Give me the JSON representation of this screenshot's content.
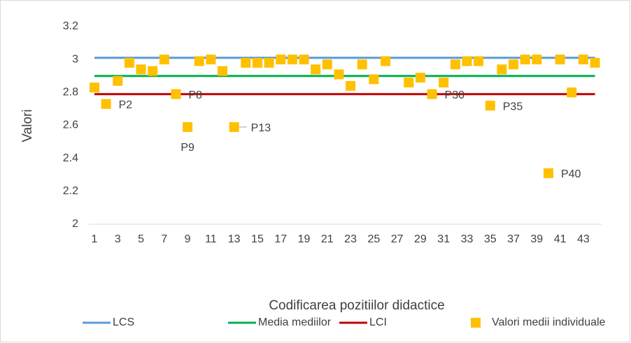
{
  "chart_data": {
    "type": "line",
    "x_label": "Codificarea pozitiilor didactice",
    "y_label": "Valori",
    "categories": [
      1,
      null,
      3,
      null,
      5,
      null,
      7,
      null,
      9,
      null,
      11,
      null,
      13,
      null,
      15,
      null,
      17,
      null,
      19,
      null,
      21,
      null,
      23,
      null,
      25,
      null,
      27,
      null,
      29,
      null,
      31,
      null,
      33,
      null,
      35,
      null,
      37,
      null,
      39,
      null,
      41,
      null,
      43,
      null
    ],
    "ylim": [
      2,
      3.2
    ],
    "yticks": [
      2,
      2.2,
      2.4,
      2.6,
      2.8,
      3,
      3.2
    ],
    "legend": "bottom",
    "series": [
      {
        "name": "LCS",
        "color": "#5b9bd5",
        "values": [
          3.01,
          3.01,
          3.01,
          3.01,
          3.01,
          3.01,
          3.01,
          3.01,
          3.01,
          3.01,
          3.01,
          3.01,
          3.01,
          3.01,
          3.01,
          3.01,
          3.01,
          3.01,
          3.01,
          3.01,
          3.01,
          3.01,
          3.01,
          3.01,
          3.01,
          3.01,
          3.01,
          3.01,
          3.01,
          3.01,
          3.01,
          3.01,
          3.01,
          3.01,
          3.01,
          3.01,
          3.01,
          3.01,
          3.01,
          3.01,
          3.01,
          3.01,
          3.01,
          3.01
        ]
      },
      {
        "name": "Media mediilor",
        "color": "#00b050",
        "values": [
          2.9,
          2.9,
          2.9,
          2.9,
          2.9,
          2.9,
          2.9,
          2.9,
          2.9,
          2.9,
          2.9,
          2.9,
          2.9,
          2.9,
          2.9,
          2.9,
          2.9,
          2.9,
          2.9,
          2.9,
          2.9,
          2.9,
          2.9,
          2.9,
          2.9,
          2.9,
          2.9,
          2.9,
          2.9,
          2.9,
          2.9,
          2.9,
          2.9,
          2.9,
          2.9,
          2.9,
          2.9,
          2.9,
          2.9,
          2.9,
          2.9,
          2.9,
          2.9,
          2.9
        ]
      },
      {
        "name": "LCI",
        "color": "#c00000",
        "values": [
          2.79,
          2.79,
          2.79,
          2.79,
          2.79,
          2.79,
          2.79,
          2.79,
          2.79,
          2.79,
          2.79,
          2.79,
          2.79,
          2.79,
          2.79,
          2.79,
          2.79,
          2.79,
          2.79,
          2.79,
          2.79,
          2.79,
          2.79,
          2.79,
          2.79,
          2.79,
          2.79,
          2.79,
          2.79,
          2.79,
          2.79,
          2.79,
          2.79,
          2.79,
          2.79,
          2.79,
          2.79,
          2.79,
          2.79,
          2.79,
          2.79,
          2.79,
          2.79,
          2.79
        ]
      },
      {
        "name": "Valori medii individuale",
        "color": "#ffc000",
        "marker": "square",
        "values": [
          2.83,
          2.73,
          2.87,
          2.98,
          2.94,
          2.93,
          3.0,
          2.79,
          2.59,
          2.99,
          3.0,
          2.93,
          2.59,
          2.98,
          2.98,
          2.98,
          3.0,
          3.0,
          3.0,
          2.94,
          2.97,
          2.91,
          2.84,
          2.97,
          2.88,
          2.99,
          null,
          2.86,
          2.89,
          2.79,
          2.86,
          2.97,
          2.99,
          2.99,
          2.72,
          2.94,
          2.97,
          3.0,
          3.0,
          2.31,
          3.0,
          2.8,
          3.0,
          2.98
        ],
        "value_labels": [
          null,
          "P2",
          null,
          null,
          null,
          null,
          null,
          "P8",
          "P9",
          null,
          null,
          null,
          "P13",
          null,
          null,
          null,
          null,
          null,
          null,
          null,
          null,
          null,
          null,
          null,
          null,
          null,
          null,
          null,
          null,
          "P30",
          null,
          null,
          null,
          null,
          "P35",
          null,
          null,
          null,
          null,
          "P40",
          null,
          null,
          null,
          null
        ]
      }
    ]
  }
}
